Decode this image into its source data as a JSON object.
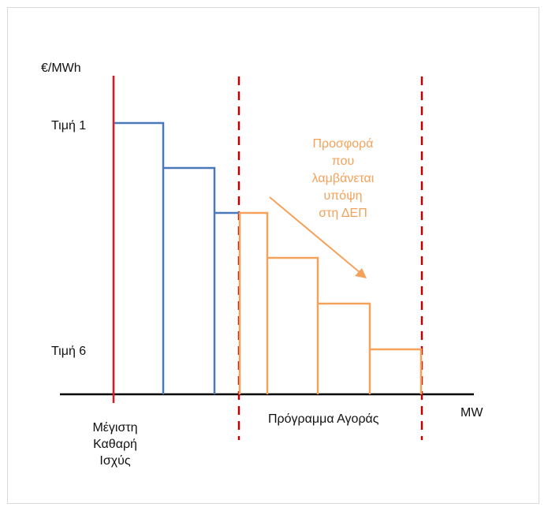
{
  "labels": {
    "y_unit": "€/MWh",
    "x_unit": "MW",
    "price_1": "Τιμή 1",
    "price_6": "Τιμή 6",
    "max_power_lines": [
      "Μέγιστη",
      "Καθαρή",
      "Ισχύς"
    ],
    "market_schedule": "Πρόγραμμα Αγοράς",
    "offer_note_lines": [
      "Προσφορά",
      "που",
      "λαμβάνεται",
      "υπόψη",
      "στη ΔΕΠ"
    ]
  },
  "colors": {
    "axis": "#000000",
    "max_power_line": "#e8141b",
    "blue_steps": "#4a78b8",
    "orange_steps": "#f4a25a",
    "dashed_bounds": "#c00000",
    "note_text": "#f4a25a"
  }
}
